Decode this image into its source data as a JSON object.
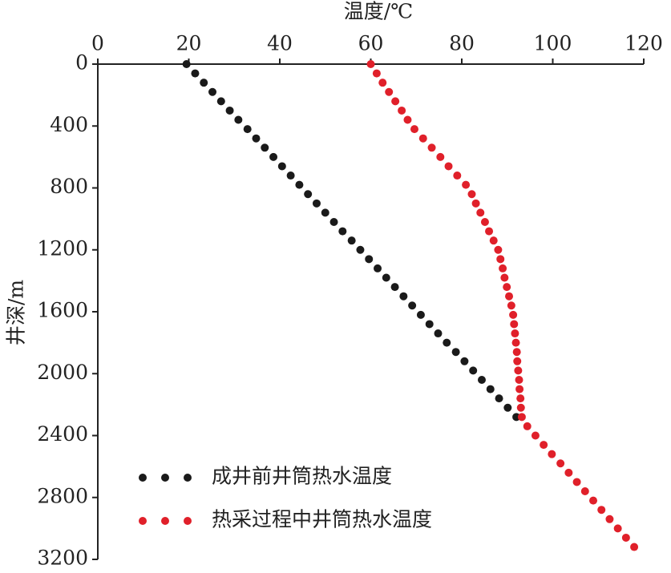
{
  "chart_data": {
    "type": "scatter",
    "xlabel": "温度/℃",
    "ylabel": "井深/m",
    "xlim": [
      0,
      120
    ],
    "xticks": [
      0,
      20,
      40,
      60,
      80,
      100,
      120
    ],
    "ylim": [
      0,
      3200
    ],
    "yticks": [
      0,
      400,
      800,
      1200,
      1600,
      2000,
      2400,
      2800,
      3200
    ],
    "y_inverted": true,
    "x_axis_top": true,
    "legend": "lower left",
    "series": [
      {
        "name": "成井前井筒热水温度",
        "color": "#1a1a1a",
        "x": [
          19.5,
          21.4,
          23.3,
          25.2,
          27.1,
          29.0,
          30.9,
          32.9,
          34.8,
          36.7,
          38.6,
          40.5,
          42.4,
          44.3,
          46.2,
          48.1,
          50.0,
          51.9,
          53.8,
          55.8,
          57.7,
          59.6,
          61.5,
          63.4,
          65.3,
          67.2,
          69.1,
          71.0,
          72.9,
          74.8,
          76.7,
          78.7,
          80.6,
          82.5,
          84.4,
          86.3,
          88.2,
          90.1,
          92.0
        ],
        "values": [
          0,
          60,
          120,
          180,
          240,
          300,
          360,
          420,
          480,
          540,
          600,
          660,
          720,
          780,
          840,
          900,
          960,
          1020,
          1080,
          1140,
          1200,
          1260,
          1320,
          1380,
          1440,
          1500,
          1560,
          1620,
          1680,
          1740,
          1800,
          1860,
          1920,
          1980,
          2040,
          2100,
          2160,
          2220,
          2280
        ]
      },
      {
        "name": "热采过程中井筒热水温度",
        "color": "#e0202a",
        "x": [
          60.0,
          61.3,
          62.6,
          64.0,
          65.4,
          66.8,
          68.1,
          69.6,
          71.5,
          73.4,
          75.3,
          77.1,
          79.0,
          80.9,
          82.2,
          83.1,
          84.1,
          85.1,
          86.0,
          87.0,
          88.0,
          88.5,
          89.0,
          89.4,
          89.9,
          90.4,
          90.9,
          91.3,
          91.5,
          91.7,
          91.9,
          92.1,
          92.2,
          92.4,
          92.6,
          92.7,
          92.9,
          93.0,
          93.2,
          94.4,
          96.2,
          98.0,
          99.8,
          101.7,
          103.5,
          105.3,
          107.1,
          108.9,
          110.7,
          112.5,
          114.3,
          116.1,
          117.9
        ],
        "values": [
          0,
          60,
          120,
          180,
          240,
          300,
          360,
          420,
          480,
          540,
          600,
          660,
          720,
          780,
          840,
          900,
          960,
          1020,
          1080,
          1140,
          1200,
          1260,
          1320,
          1380,
          1440,
          1500,
          1560,
          1620,
          1680,
          1740,
          1800,
          1860,
          1920,
          1980,
          2040,
          2100,
          2160,
          2220,
          2280,
          2340,
          2400,
          2460,
          2520,
          2580,
          2640,
          2700,
          2760,
          2820,
          2880,
          2940,
          3000,
          3060,
          3120
        ]
      }
    ]
  }
}
